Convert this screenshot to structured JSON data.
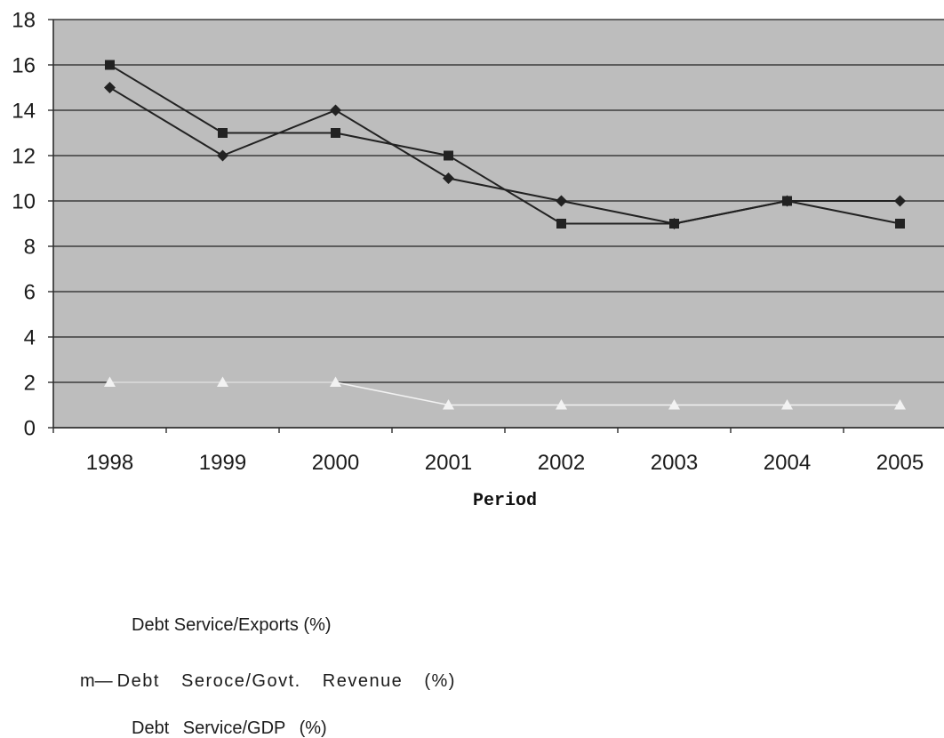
{
  "chart_data": {
    "type": "line",
    "categories": [
      "1998",
      "1999",
      "2000",
      "2001",
      "2002",
      "2003",
      "2004",
      "2005"
    ],
    "series": [
      {
        "name": "Debt Service/Exports (%)",
        "marker": "diamond",
        "color": "#222222",
        "values": [
          15,
          12,
          14,
          11,
          10,
          9,
          10,
          10
        ]
      },
      {
        "name": "Debt Seroce/Govt. Revenue (%)",
        "legend_glyph": "m—",
        "marker": "square",
        "color": "#222222",
        "values": [
          16,
          13,
          13,
          12,
          9,
          9,
          10,
          9
        ]
      },
      {
        "name": "Debt Service/GDP (%)",
        "marker": "triangle",
        "color": "#f2f2f2",
        "values": [
          2,
          2,
          2,
          1,
          1,
          1,
          1,
          1
        ]
      }
    ],
    "xlabel": "Period",
    "ylim": [
      0,
      18
    ],
    "yticks": [
      "0",
      "2",
      "4",
      "6",
      "8",
      "10",
      "12",
      "14",
      "16",
      "18"
    ],
    "grid": true,
    "legend_position": "bottom-left",
    "colors": {
      "plot_background": "#bdbdbd",
      "gridline": "#3d3d3d",
      "axis": "#2e2e2e",
      "text": "#1b1b1b"
    }
  }
}
